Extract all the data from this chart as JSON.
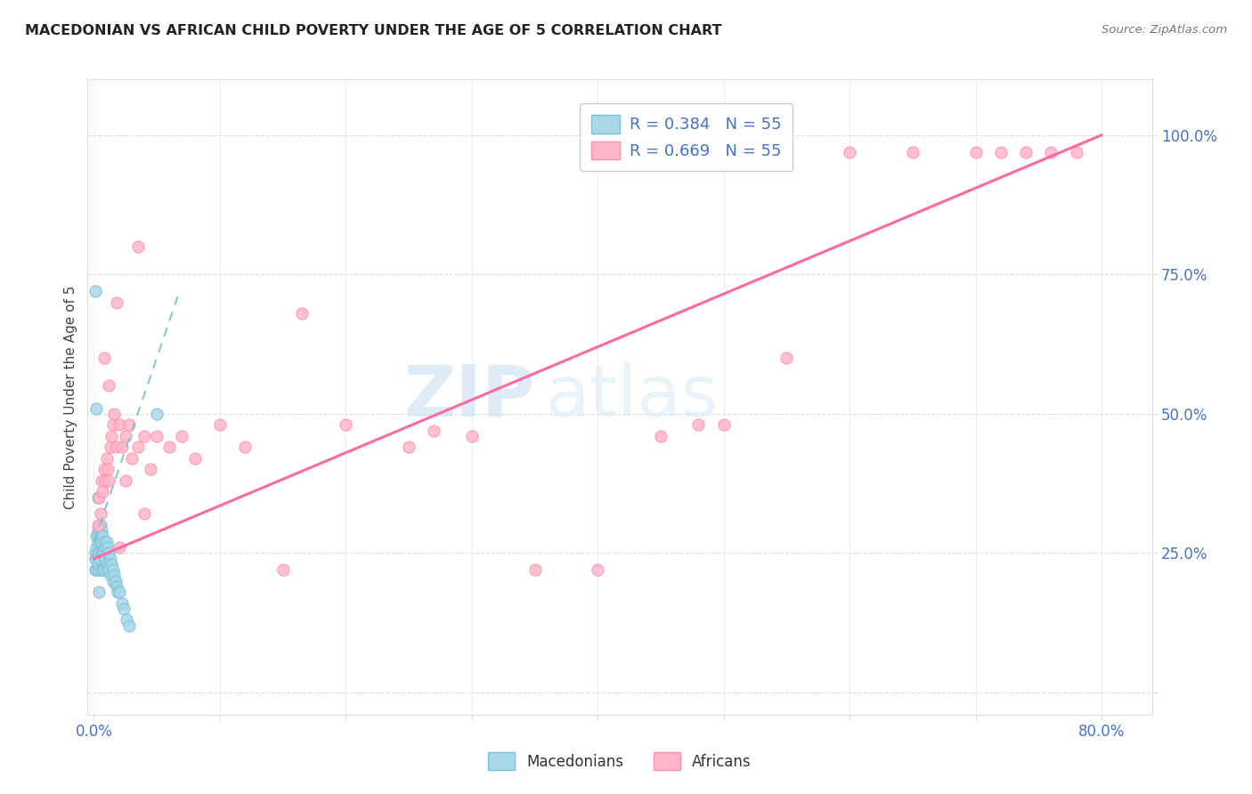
{
  "title": "MACEDONIAN VS AFRICAN CHILD POVERTY UNDER THE AGE OF 5 CORRELATION CHART",
  "source": "Source: ZipAtlas.com",
  "ylabel": "Child Poverty Under the Age of 5",
  "xlim": [
    -0.005,
    0.84
  ],
  "ylim": [
    -0.04,
    1.1
  ],
  "macedonian_color": "#A8D8EA",
  "macedonian_edge_color": "#7BBFD4",
  "african_color": "#FFB6C8",
  "african_edge_color": "#FF8FAF",
  "macedonian_line_color": "#7BBFD4",
  "african_line_color": "#FF69A0",
  "r_macedonian": 0.384,
  "n_macedonian": 55,
  "r_african": 0.669,
  "n_african": 55,
  "watermark_zip": "ZIP",
  "watermark_atlas": "atlas",
  "tick_color": "#4472C4",
  "label_color": "#444444",
  "grid_color": "#DDDDDD",
  "mac_line_x0": 0.0,
  "mac_line_y0": 0.27,
  "mac_line_x1": 0.068,
  "mac_line_y1": 0.72,
  "afr_line_x0": 0.0,
  "afr_line_y0": 0.24,
  "afr_line_x1": 0.8,
  "afr_line_y1": 1.0,
  "mac_scatter_x": [
    0.001,
    0.001,
    0.001,
    0.002,
    0.002,
    0.002,
    0.002,
    0.003,
    0.003,
    0.003,
    0.003,
    0.004,
    0.004,
    0.004,
    0.005,
    0.005,
    0.005,
    0.006,
    0.006,
    0.006,
    0.006,
    0.007,
    0.007,
    0.007,
    0.008,
    0.008,
    0.008,
    0.009,
    0.009,
    0.01,
    0.01,
    0.01,
    0.011,
    0.011,
    0.012,
    0.012,
    0.013,
    0.013,
    0.014,
    0.015,
    0.015,
    0.016,
    0.017,
    0.018,
    0.019,
    0.02,
    0.022,
    0.024,
    0.026,
    0.028,
    0.001,
    0.002,
    0.05,
    0.003,
    0.004
  ],
  "mac_scatter_y": [
    0.25,
    0.24,
    0.22,
    0.28,
    0.26,
    0.24,
    0.22,
    0.29,
    0.27,
    0.25,
    0.23,
    0.28,
    0.25,
    0.22,
    0.3,
    0.27,
    0.24,
    0.29,
    0.27,
    0.25,
    0.22,
    0.28,
    0.25,
    0.22,
    0.27,
    0.25,
    0.22,
    0.26,
    0.24,
    0.27,
    0.25,
    0.22,
    0.26,
    0.23,
    0.25,
    0.22,
    0.24,
    0.21,
    0.23,
    0.22,
    0.2,
    0.21,
    0.2,
    0.19,
    0.18,
    0.18,
    0.16,
    0.15,
    0.13,
    0.12,
    0.72,
    0.51,
    0.5,
    0.35,
    0.18
  ],
  "afr_scatter_x": [
    0.003,
    0.004,
    0.005,
    0.006,
    0.007,
    0.008,
    0.009,
    0.01,
    0.011,
    0.012,
    0.013,
    0.014,
    0.015,
    0.016,
    0.018,
    0.02,
    0.022,
    0.025,
    0.028,
    0.03,
    0.035,
    0.04,
    0.045,
    0.05,
    0.06,
    0.07,
    0.08,
    0.1,
    0.12,
    0.15,
    0.2,
    0.25,
    0.3,
    0.35,
    0.4,
    0.45,
    0.5,
    0.55,
    0.6,
    0.65,
    0.7,
    0.72,
    0.74,
    0.76,
    0.78,
    0.02,
    0.035,
    0.165,
    0.27,
    0.48,
    0.008,
    0.012,
    0.018,
    0.025,
    0.04
  ],
  "afr_scatter_y": [
    0.3,
    0.35,
    0.32,
    0.38,
    0.36,
    0.4,
    0.38,
    0.42,
    0.4,
    0.38,
    0.44,
    0.46,
    0.48,
    0.5,
    0.44,
    0.48,
    0.44,
    0.46,
    0.48,
    0.42,
    0.44,
    0.46,
    0.4,
    0.46,
    0.44,
    0.46,
    0.42,
    0.48,
    0.44,
    0.22,
    0.48,
    0.44,
    0.46,
    0.22,
    0.22,
    0.46,
    0.48,
    0.6,
    0.97,
    0.97,
    0.97,
    0.97,
    0.97,
    0.97,
    0.97,
    0.26,
    0.8,
    0.68,
    0.47,
    0.48,
    0.6,
    0.55,
    0.7,
    0.38,
    0.32
  ]
}
